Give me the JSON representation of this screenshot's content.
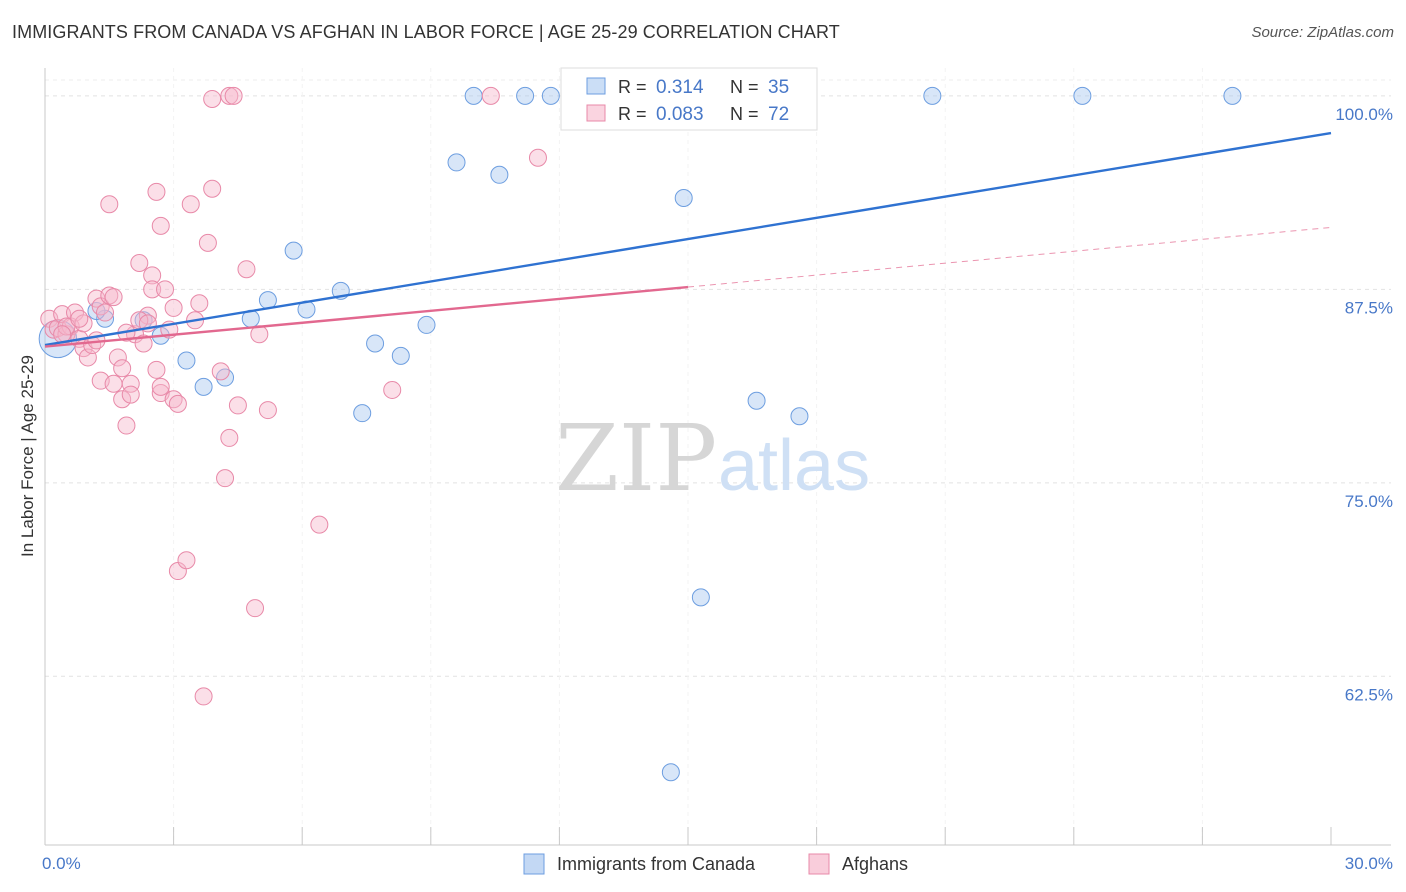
{
  "header": {
    "title": "IMMIGRANTS FROM CANADA VS AFGHAN IN LABOR FORCE | AGE 25-29 CORRELATION CHART",
    "source": "Source: ZipAtlas.com"
  },
  "watermark": {
    "zip": "ZIP",
    "atlas": "atlas"
  },
  "colors": {
    "blue_fill": "#a9c8f0",
    "blue_stroke": "#6d9ee0",
    "blue_line": "#2f72d1",
    "pink_fill": "#f7b8cc",
    "pink_stroke": "#e889a8",
    "pink_line": "#e2688f",
    "tick_label": "#4878c8",
    "grid": "#e2e2e2"
  },
  "chart_data": {
    "type": "scatter",
    "xlabel": "",
    "ylabel": "In Labor Force | Age 25-29",
    "xlim": [
      0,
      30
    ],
    "ylim": [
      51.6,
      101.8
    ],
    "x_tick_labels": [
      {
        "value": 0,
        "label": "0.0%"
      },
      {
        "value": 30,
        "label": "30.0%"
      }
    ],
    "y_tick_labels": [
      {
        "value": 100,
        "label": "100.0%"
      },
      {
        "value": 87.5,
        "label": "87.5%"
      },
      {
        "value": 75,
        "label": "75.0%"
      },
      {
        "value": 62.5,
        "label": "62.5%"
      }
    ],
    "grid": true,
    "legend": {
      "placement": "bottom",
      "stats": [
        {
          "r_label": "R = ",
          "r_value": "0.314",
          "n_label": "N = ",
          "n_value": "35"
        },
        {
          "r_label": "R = ",
          "r_value": "0.083",
          "n_label": "N = ",
          "n_value": "72"
        }
      ]
    },
    "series": [
      {
        "name": "Immigrants from Canada",
        "color": "blue",
        "trend": {
          "x": [
            0,
            30
          ],
          "y": [
            83.9,
            97.6
          ],
          "dashed_after": null
        },
        "points": [
          [
            0.3,
            84.3,
            2.2
          ],
          [
            1.4,
            85.6,
            1
          ],
          [
            1.2,
            86.1,
            1
          ],
          [
            2.3,
            85.5,
            1
          ],
          [
            2.7,
            84.5,
            1
          ],
          [
            3.3,
            82.9,
            1
          ],
          [
            3.7,
            81.2,
            1
          ],
          [
            4.2,
            81.8,
            1
          ],
          [
            4.8,
            85.6,
            1
          ],
          [
            5.2,
            86.8,
            1
          ],
          [
            5.8,
            90.0,
            1
          ],
          [
            6.1,
            86.2,
            1
          ],
          [
            6.9,
            87.4,
            1
          ],
          [
            7.4,
            79.5,
            1
          ],
          [
            7.7,
            84.0,
            1
          ],
          [
            8.3,
            83.2,
            1
          ],
          [
            8.9,
            85.2,
            1
          ],
          [
            9.6,
            95.7,
            1
          ],
          [
            10.0,
            100.0,
            1
          ],
          [
            10.6,
            94.9,
            1
          ],
          [
            11.2,
            100.0,
            1
          ],
          [
            11.8,
            100.0,
            1
          ],
          [
            12.3,
            100.0,
            1
          ],
          [
            12.8,
            100.0,
            1
          ],
          [
            13.0,
            100.0,
            1
          ],
          [
            14.3,
            100.0,
            1
          ],
          [
            14.6,
            56.3,
            1
          ],
          [
            14.9,
            93.4,
            1
          ],
          [
            15.3,
            67.6,
            1
          ],
          [
            16.3,
            100.0,
            1
          ],
          [
            16.6,
            80.3,
            1
          ],
          [
            17.6,
            79.3,
            1
          ],
          [
            20.7,
            100.0,
            1
          ],
          [
            24.2,
            100.0,
            1
          ],
          [
            27.7,
            100.0,
            1
          ]
        ]
      },
      {
        "name": "Afghans",
        "color": "pink",
        "trend": {
          "x": [
            0,
            30
          ],
          "y": [
            83.8,
            91.5
          ],
          "dashed_after": 15
        },
        "points": [
          [
            0.1,
            85.6,
            1
          ],
          [
            0.2,
            84.9,
            1
          ],
          [
            0.3,
            85.0,
            1
          ],
          [
            0.4,
            85.9,
            1
          ],
          [
            0.5,
            84.6,
            1
          ],
          [
            0.6,
            85.1,
            1
          ],
          [
            0.7,
            86.0,
            1
          ],
          [
            0.8,
            84.3,
            1
          ],
          [
            0.9,
            85.3,
            1
          ],
          [
            0.9,
            83.7,
            1
          ],
          [
            1.0,
            83.1,
            1
          ],
          [
            1.1,
            83.9,
            1
          ],
          [
            1.2,
            86.9,
            1
          ],
          [
            1.3,
            86.4,
            1
          ],
          [
            1.4,
            86.0,
            1
          ],
          [
            1.5,
            87.1,
            1
          ],
          [
            1.3,
            81.6,
            1
          ],
          [
            1.5,
            93.0,
            1
          ],
          [
            1.6,
            81.4,
            1
          ],
          [
            1.7,
            83.1,
            1
          ],
          [
            1.8,
            80.4,
            1
          ],
          [
            1.8,
            82.4,
            1
          ],
          [
            1.9,
            78.7,
            1
          ],
          [
            2.0,
            81.4,
            1
          ],
          [
            2.0,
            80.7,
            1
          ],
          [
            2.1,
            84.6,
            1
          ],
          [
            2.2,
            89.2,
            1
          ],
          [
            2.3,
            84.0,
            1
          ],
          [
            2.4,
            85.8,
            1
          ],
          [
            2.5,
            88.4,
            1
          ],
          [
            2.5,
            87.5,
            1
          ],
          [
            2.6,
            82.3,
            1
          ],
          [
            2.7,
            80.8,
            1
          ],
          [
            2.7,
            81.2,
            1
          ],
          [
            2.8,
            87.5,
            1
          ],
          [
            2.6,
            93.8,
            1
          ],
          [
            2.7,
            91.6,
            1
          ],
          [
            2.9,
            84.9,
            1
          ],
          [
            3.0,
            80.4,
            1
          ],
          [
            3.1,
            80.1,
            1
          ],
          [
            3.1,
            69.3,
            1
          ],
          [
            3.3,
            70.0,
            1
          ],
          [
            3.4,
            93.0,
            1
          ],
          [
            3.5,
            85.5,
            1
          ],
          [
            3.6,
            86.6,
            1
          ],
          [
            3.7,
            61.2,
            1
          ],
          [
            3.8,
            90.5,
            1
          ],
          [
            3.9,
            94.0,
            1
          ],
          [
            3.9,
            99.8,
            1
          ],
          [
            4.1,
            82.2,
            1
          ],
          [
            4.2,
            75.3,
            1
          ],
          [
            4.3,
            77.9,
            1
          ],
          [
            4.3,
            100.0,
            1
          ],
          [
            4.4,
            100.0,
            1
          ],
          [
            4.5,
            80.0,
            1
          ],
          [
            4.7,
            88.8,
            1
          ],
          [
            4.9,
            66.9,
            1
          ],
          [
            5.0,
            84.6,
            1
          ],
          [
            5.2,
            79.7,
            1
          ],
          [
            6.4,
            72.3,
            1
          ],
          [
            8.1,
            81.0,
            1
          ],
          [
            10.4,
            100.0,
            1
          ],
          [
            11.5,
            96.0,
            1
          ],
          [
            0.5,
            85.1,
            1
          ],
          [
            1.9,
            84.7,
            1
          ],
          [
            2.2,
            85.5,
            1
          ],
          [
            1.2,
            84.2,
            1
          ],
          [
            0.8,
            85.6,
            1
          ],
          [
            3.0,
            86.3,
            1
          ],
          [
            1.6,
            87.0,
            1
          ],
          [
            2.4,
            85.3,
            1
          ],
          [
            0.4,
            84.6,
            1
          ]
        ]
      }
    ]
  }
}
